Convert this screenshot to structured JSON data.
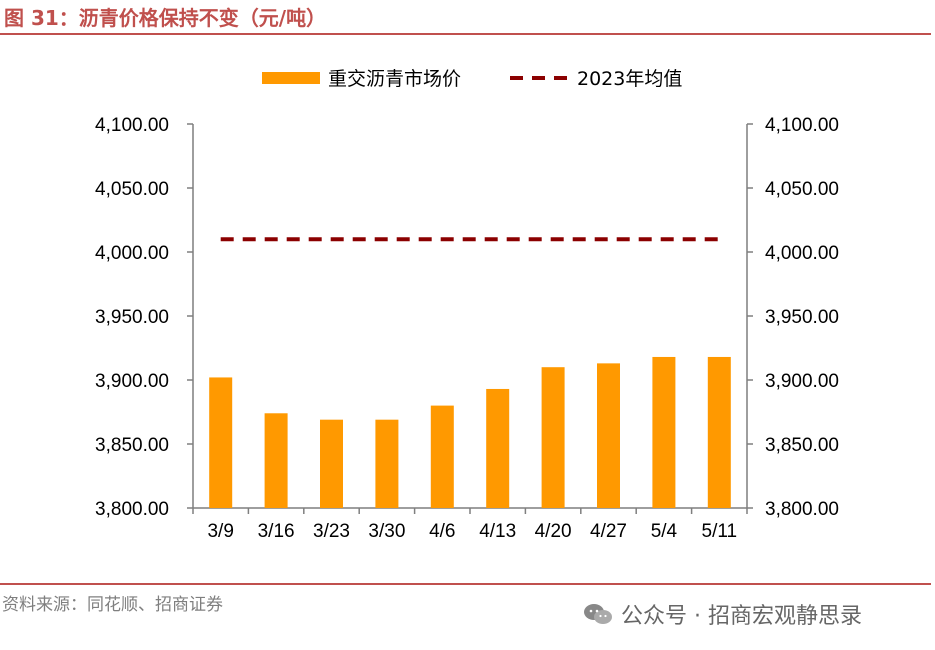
{
  "title": "图 31：沥青价格保持不变（元/吨）",
  "source": "资料来源：同花顺、招商证券",
  "watermark": {
    "text": "公众号 · 招商宏观静思录",
    "icon": "wechat-icon"
  },
  "colors": {
    "bar": "#FF9900",
    "line": "#8B0000",
    "rule": "#C0504D",
    "axis": "#7F7F7F"
  },
  "chart_data": {
    "type": "bar",
    "categories": [
      "3/9",
      "3/16",
      "3/23",
      "3/30",
      "4/6",
      "4/13",
      "4/20",
      "4/27",
      "5/4",
      "5/11"
    ],
    "series": [
      {
        "name": "重交沥青市场价",
        "type": "bar",
        "values": [
          3902,
          3874,
          3869,
          3869,
          3880,
          3893,
          3910,
          3913,
          3918,
          3918
        ]
      },
      {
        "name": "2023年均值",
        "type": "line",
        "style": "dashed",
        "values": [
          4010,
          4010,
          4010,
          4010,
          4010,
          4010,
          4010,
          4010,
          4010,
          4010
        ]
      }
    ],
    "ylim": [
      3800,
      4100
    ],
    "yticks": [
      "3,800.00",
      "3,850.00",
      "3,900.00",
      "3,950.00",
      "4,000.00",
      "4,050.00",
      "4,100.00"
    ],
    "y2ticks": [
      "3,800.00",
      "3,850.00",
      "3,900.00",
      "3,950.00",
      "4,000.00",
      "4,050.00",
      "4,100.00"
    ],
    "legend_position": "top",
    "grid": false
  }
}
